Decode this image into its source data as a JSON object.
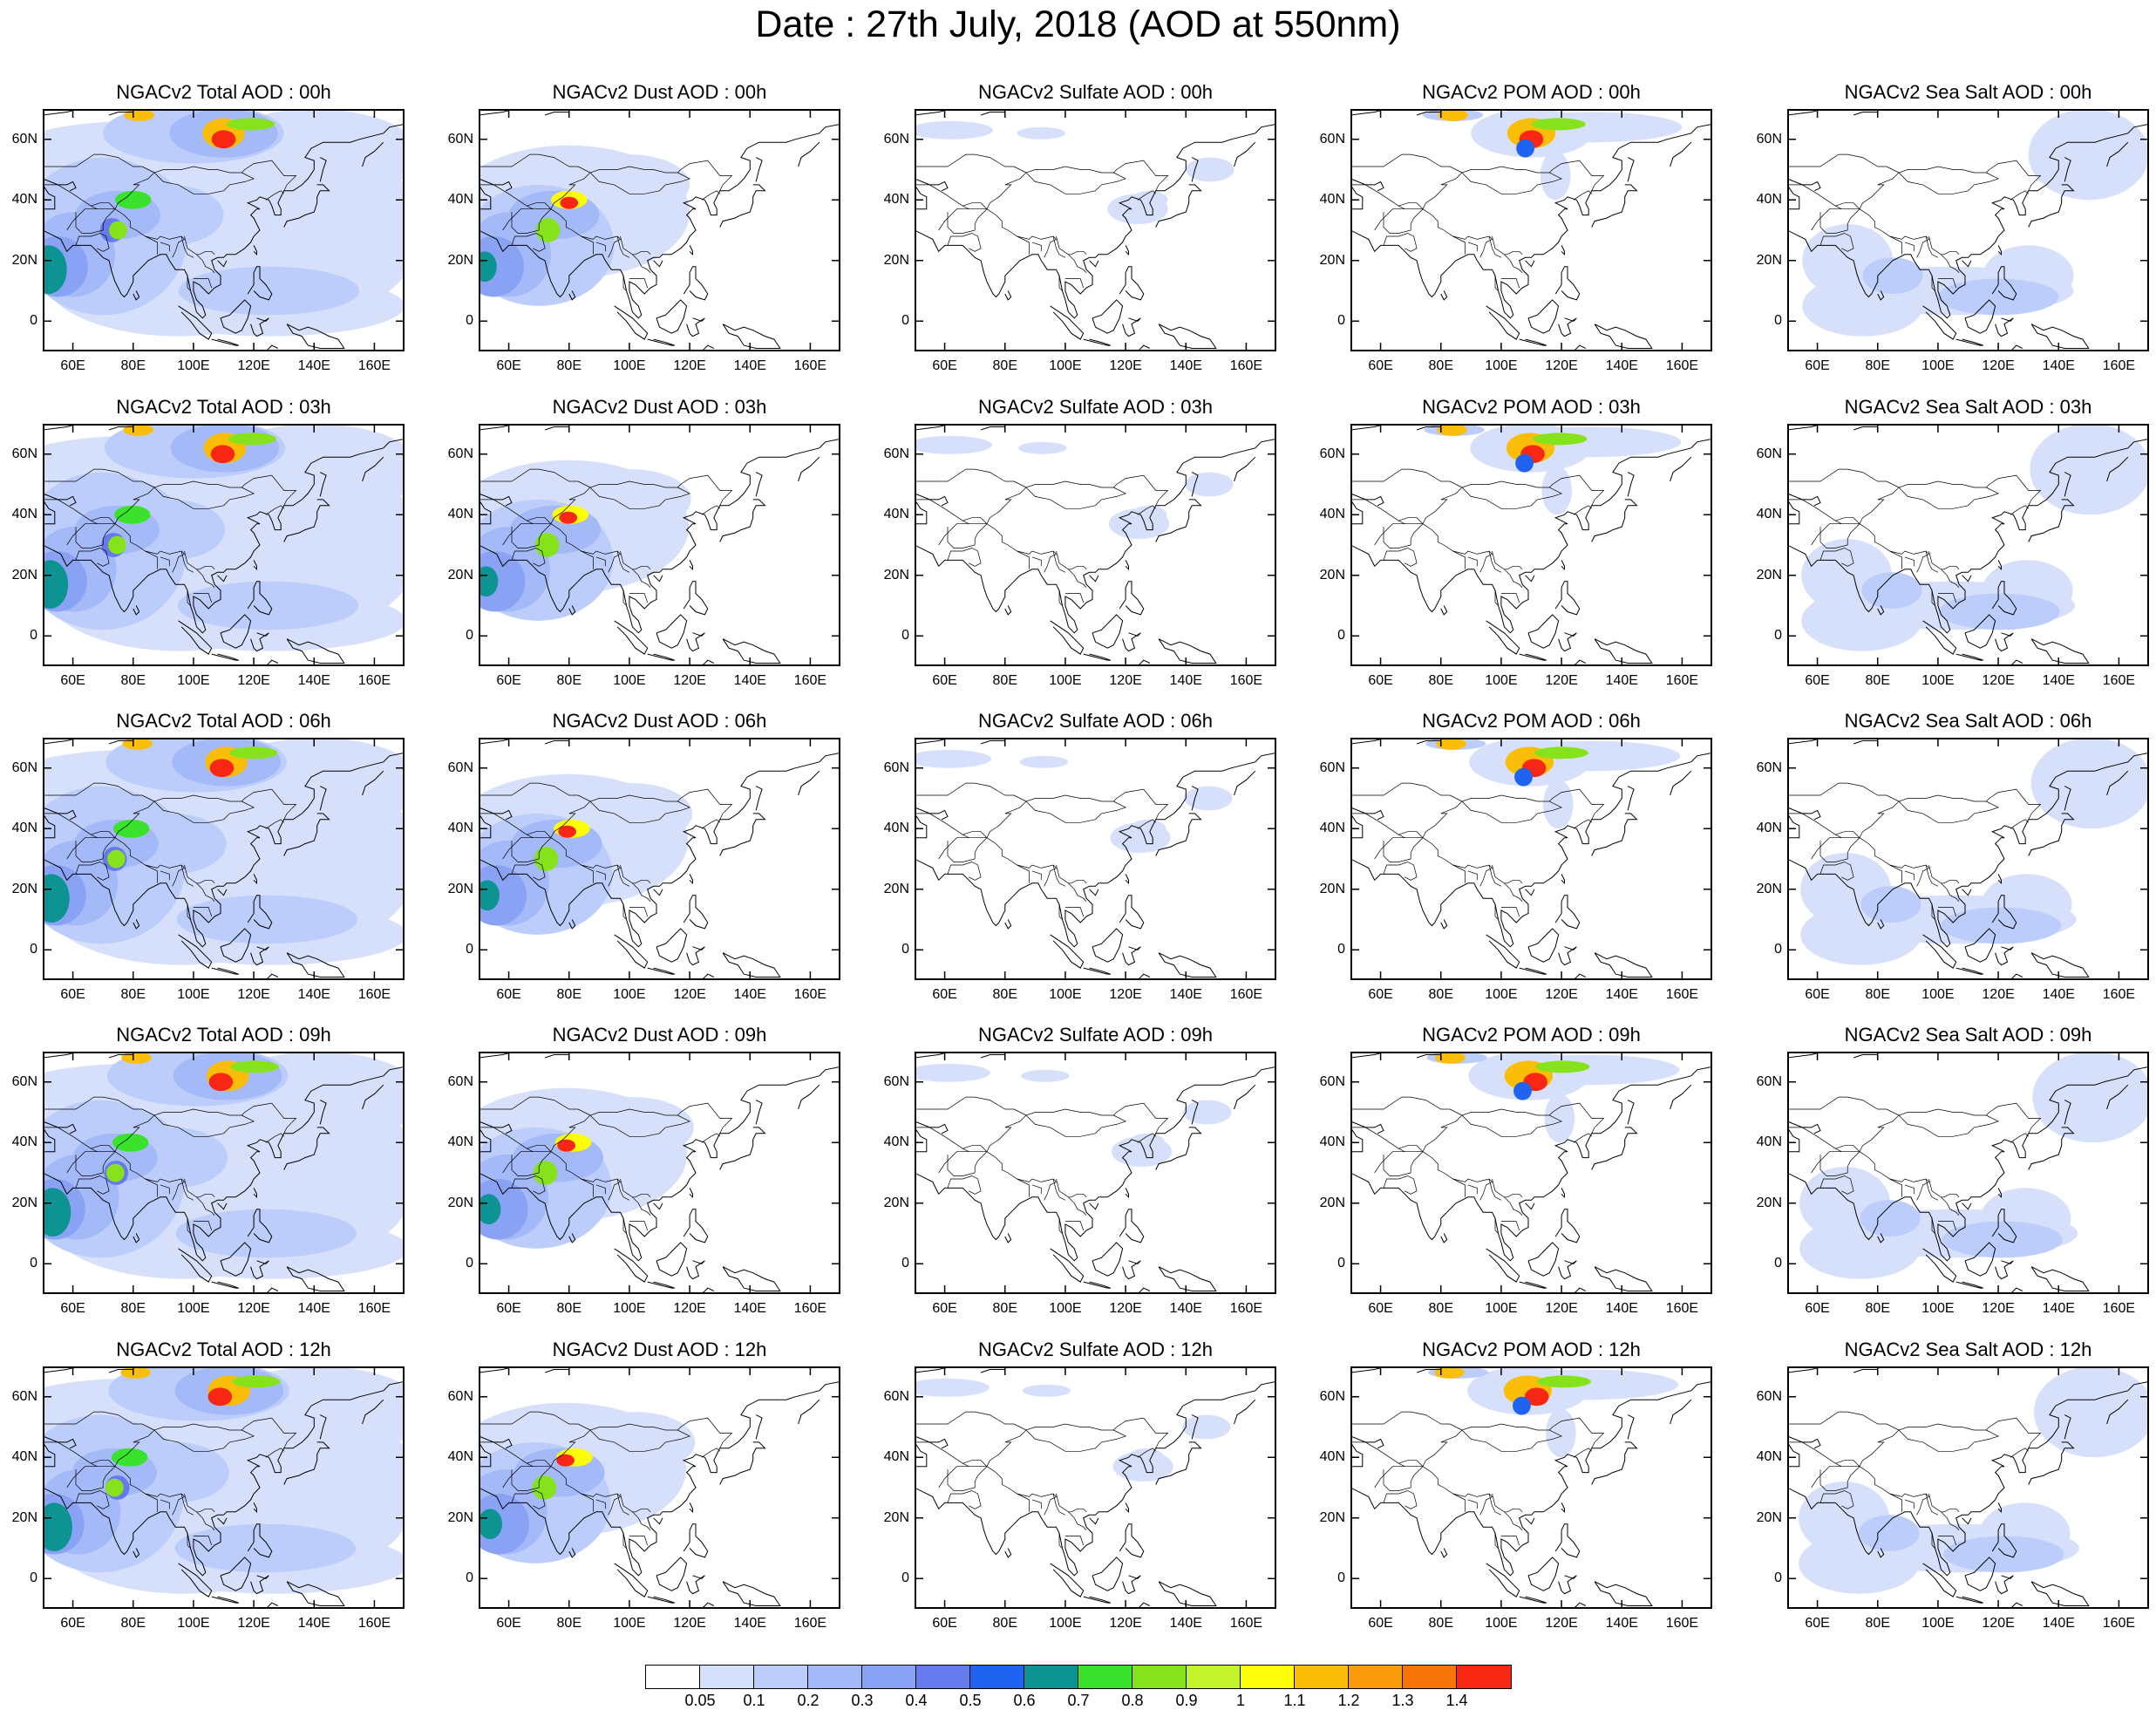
{
  "title": "Date : 27th July, 2018 (AOD at 550nm)",
  "panel_titles": [
    [
      "NGACv2 Total AOD : 00h",
      "NGACv2 Dust AOD : 00h",
      "NGACv2 Sulfate AOD : 00h",
      "NGACv2 POM AOD : 00h",
      "NGACv2 Sea Salt AOD : 00h"
    ],
    [
      "NGACv2 Total AOD : 03h",
      "NGACv2 Dust AOD : 03h",
      "NGACv2 Sulfate AOD : 03h",
      "NGACv2 POM AOD : 03h",
      "NGACv2 Sea Salt AOD : 03h"
    ],
    [
      "NGACv2 Total AOD : 06h",
      "NGACv2 Dust AOD : 06h",
      "NGACv2 Sulfate AOD : 06h",
      "NGACv2 POM AOD : 06h",
      "NGACv2 Sea Salt AOD : 06h"
    ],
    [
      "NGACv2 Total AOD : 09h",
      "NGACv2 Dust AOD : 09h",
      "NGACv2 Sulfate AOD : 09h",
      "NGACv2 POM AOD : 09h",
      "NGACv2 Sea Salt  AOD : 09h"
    ],
    [
      "NGACv2 Total AOD  : 12h",
      "NGACv2 Dust AOD : 12h",
      "NGACv2 Sulfate AOD : 12h",
      "NGACv2 POM  AOD : 12h",
      "NGACv2 Sea Salt  AOD : 12h"
    ]
  ],
  "lat_ticks": [
    "60N",
    "40N",
    "20N",
    "0"
  ],
  "lon_ticks": [
    "60E",
    "80E",
    "100E",
    "120E",
    "140E",
    "160E"
  ],
  "map_extent": {
    "lon": [
      50,
      170
    ],
    "lat": [
      -10,
      70
    ]
  },
  "colorbar": {
    "labels": [
      "0.05",
      "0.1",
      "0.2",
      "0.3",
      "0.4",
      "0.5",
      "0.6",
      "0.7",
      "0.8",
      "0.9",
      "1",
      "1.1",
      "1.2",
      "1.3",
      "1.4"
    ],
    "colors": [
      "#ffffff",
      "#d6e0fb",
      "#bccdfb",
      "#a3b9f8",
      "#8aa2f4",
      "#6679ee",
      "#1f63f0",
      "#0d9392",
      "#3be22d",
      "#86e21a",
      "#c3f32b",
      "#fdfd09",
      "#fbbe08",
      "#f99b0a",
      "#f77408",
      "#f82713"
    ]
  },
  "colors": {
    "outline": "#000000"
  }
}
